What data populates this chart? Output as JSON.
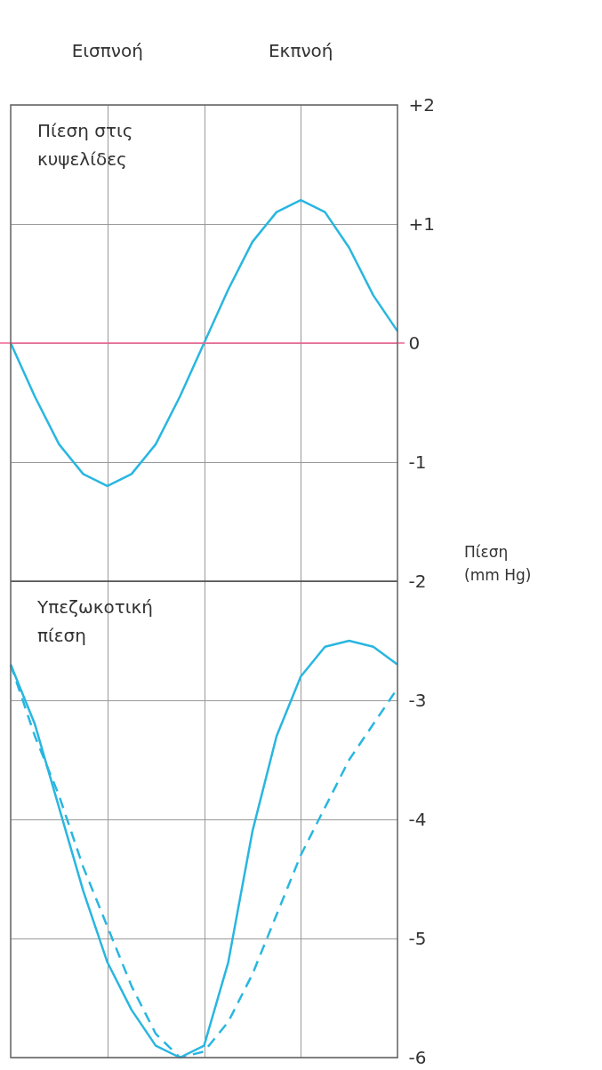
{
  "chart_data": {
    "type": "line",
    "categories": [
      null,
      null,
      null,
      null,
      null,
      null,
      null,
      null,
      null,
      null,
      null,
      null,
      null,
      null,
      null,
      null,
      null
    ],
    "series": [
      {
        "color": "#29b6e0",
        "line_style": "solid",
        "values": [
          0,
          -0.45,
          -0.85,
          -1.1,
          -1.2,
          -1.1,
          -0.85,
          -0.45,
          0,
          0.45,
          0.85,
          1.1,
          1.2,
          1.1,
          0.8,
          0.4,
          0.1
        ]
      },
      {
        "color": "#29b6e0",
        "line_style": "solid",
        "values": [
          -2.7,
          -3.2,
          -3.9,
          -4.6,
          -5.2,
          -5.6,
          -5.9,
          -6.0,
          -5.9,
          -5.2,
          -4.1,
          -3.3,
          -2.8,
          -2.55,
          -2.5,
          -2.55,
          -2.7
        ]
      },
      {
        "color": "#29b6e0",
        "line_style": "dashed",
        "values": [
          -2.7,
          -3.3,
          -3.8,
          -4.4,
          -4.9,
          -5.4,
          -5.8,
          -6.0,
          -5.95,
          -5.7,
          -5.3,
          -4.8,
          -4.3,
          -3.9,
          -3.5,
          -3.2,
          -2.9
        ]
      }
    ],
    "ylim": [
      -6,
      2
    ],
    "yticks": [
      {
        "value": 2,
        "label": "+2"
      },
      {
        "value": 1,
        "label": "+1"
      },
      {
        "value": 0,
        "label": "0"
      },
      {
        "value": -1,
        "label": "-1"
      },
      {
        "value": -2,
        "label": "-2"
      },
      {
        "value": -3,
        "label": "-3"
      },
      {
        "value": -4,
        "label": "-4"
      },
      {
        "value": -5,
        "label": "-5"
      },
      {
        "value": -6,
        "label": "-6"
      }
    ],
    "ylabel": "Πίεση (mm Hg)",
    "tick_labels": "y",
    "grid": true,
    "marker": "none",
    "ref_lines": [
      {
        "axis": "y",
        "value": -2,
        "color": "#444444"
      },
      {
        "axis": "y",
        "value": 0,
        "color": "#f06292"
      }
    ],
    "annotations": [
      "Εισπνοή",
      "Εκπνοή",
      "Πίεση στις κυψελίδες",
      "Υπεζωκοτική πίεση"
    ]
  }
}
